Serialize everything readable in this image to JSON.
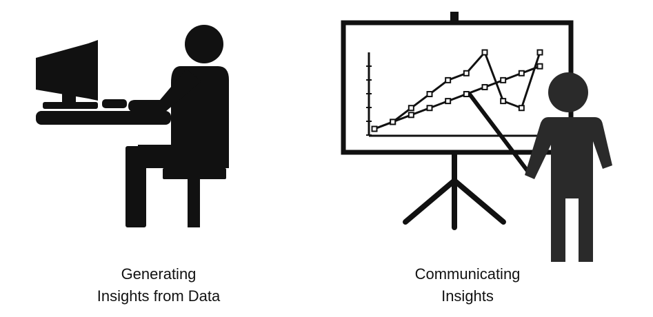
{
  "colors": {
    "figure": "#111111",
    "presenter": "#2a2a2a",
    "board_fill": "#ffffff"
  },
  "icons": {
    "left": "person-at-computer-icon",
    "right": "presenter-with-chart-icon"
  },
  "left_panel": {
    "caption_line1": "Generating",
    "caption_line2": "Insights from Data"
  },
  "right_panel": {
    "caption_line1": "Communicating",
    "caption_line2": "Insights"
  },
  "board_chart": {
    "series": [
      {
        "values": [
          1,
          2,
          4,
          6,
          8,
          9,
          12,
          5,
          4,
          12
        ]
      },
      {
        "values": [
          1,
          2,
          3,
          4,
          5,
          6,
          7,
          8,
          9,
          10
        ]
      }
    ]
  }
}
